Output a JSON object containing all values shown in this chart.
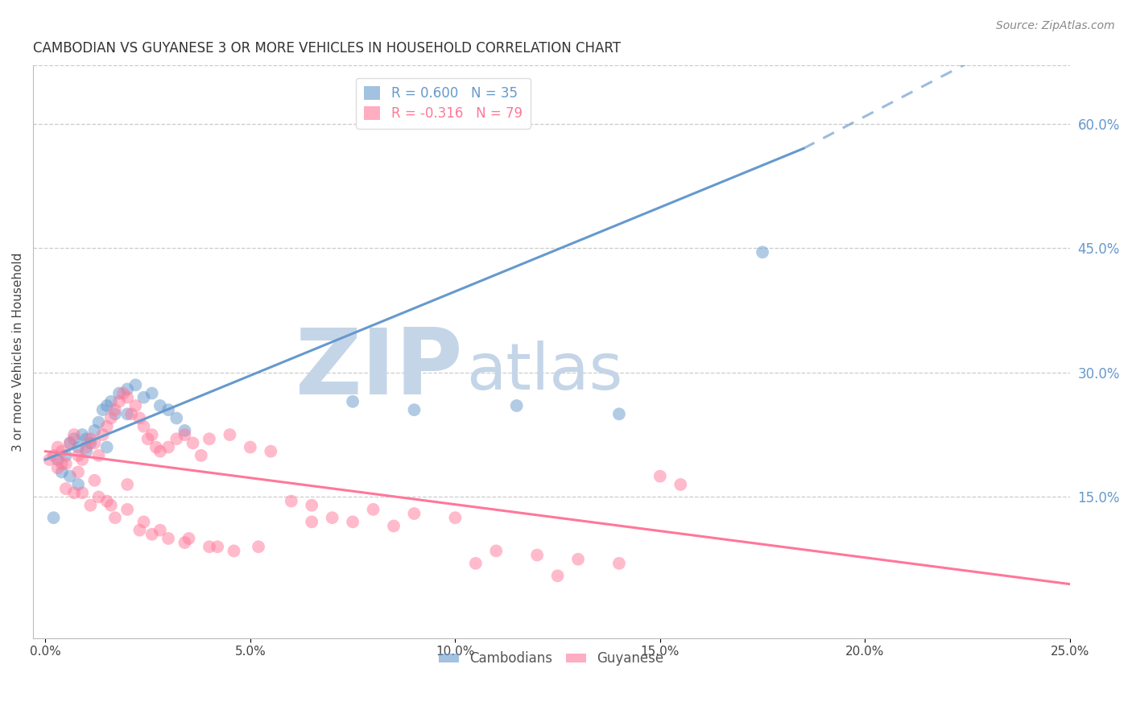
{
  "title": "CAMBODIAN VS GUYANESE 3 OR MORE VEHICLES IN HOUSEHOLD CORRELATION CHART",
  "source_text": "Source: ZipAtlas.com",
  "ylabel": "3 or more Vehicles in Household",
  "xlabel_ticks": [
    "0.0%",
    "5.0%",
    "10.0%",
    "15.0%",
    "20.0%",
    "25.0%"
  ],
  "xlabel_vals": [
    0.0,
    5.0,
    10.0,
    15.0,
    20.0,
    25.0
  ],
  "ylabel_ticks_right": [
    "60.0%",
    "45.0%",
    "30.0%",
    "15.0%"
  ],
  "ylabel_vals_right": [
    60.0,
    45.0,
    30.0,
    15.0
  ],
  "xlim": [
    -0.3,
    25.0
  ],
  "ylim": [
    -2.0,
    67.0
  ],
  "legend_cambodian": "R = 0.600   N = 35",
  "legend_guyanese": "R = -0.316   N = 79",
  "cambodian_color": "#6699cc",
  "guyanese_color": "#ff7799",
  "title_fontsize": 12,
  "source_fontsize": 10,
  "watermark_zip": "ZIP",
  "watermark_atlas": "atlas",
  "watermark_color_zip": "#c5d5e8",
  "watermark_color_atlas": "#c5d5e8",
  "grid_color": "#cccccc",
  "background_color": "#ffffff",
  "blue_trendline_solid": {
    "x": [
      0.0,
      18.5
    ],
    "y": [
      19.5,
      57.0
    ]
  },
  "blue_trendline_dashed": {
    "x": [
      18.5,
      25.5
    ],
    "y": [
      57.0,
      75.0
    ]
  },
  "pink_trendline": {
    "x": [
      0.0,
      25.0
    ],
    "y": [
      20.5,
      4.5
    ]
  },
  "cambodian_scatter_x": [
    0.3,
    0.5,
    0.6,
    0.7,
    0.8,
    0.9,
    1.0,
    1.1,
    1.2,
    1.3,
    1.4,
    1.5,
    1.6,
    1.7,
    1.8,
    2.0,
    2.2,
    2.4,
    2.6,
    2.8,
    3.0,
    3.2,
    3.4,
    0.4,
    0.6,
    0.8,
    1.0,
    1.5,
    2.0,
    7.5,
    9.0,
    11.5,
    14.0,
    17.5,
    0.2
  ],
  "cambodian_scatter_y": [
    19.5,
    20.0,
    21.5,
    22.0,
    21.0,
    22.5,
    20.5,
    21.5,
    23.0,
    24.0,
    25.5,
    26.0,
    26.5,
    25.0,
    27.5,
    28.0,
    28.5,
    27.0,
    27.5,
    26.0,
    25.5,
    24.5,
    23.0,
    18.0,
    17.5,
    16.5,
    22.0,
    21.0,
    25.0,
    26.5,
    25.5,
    26.0,
    25.0,
    44.5,
    12.5
  ],
  "guyanese_scatter_x": [
    0.1,
    0.2,
    0.3,
    0.4,
    0.5,
    0.6,
    0.7,
    0.8,
    0.9,
    1.0,
    1.1,
    1.2,
    1.3,
    1.4,
    1.5,
    1.6,
    1.7,
    1.8,
    1.9,
    2.0,
    2.1,
    2.2,
    2.3,
    2.4,
    2.5,
    2.6,
    2.7,
    2.8,
    3.0,
    3.2,
    3.4,
    3.6,
    3.8,
    4.0,
    4.5,
    5.0,
    5.5,
    6.0,
    6.5,
    7.0,
    7.5,
    8.0,
    9.0,
    10.0,
    11.0,
    12.0,
    13.0,
    14.0,
    15.0,
    0.3,
    0.5,
    0.7,
    0.9,
    1.1,
    1.3,
    1.5,
    1.7,
    2.0,
    2.3,
    2.6,
    3.0,
    3.4,
    4.0,
    4.6,
    5.2,
    6.5,
    8.5,
    10.5,
    12.5,
    0.4,
    0.8,
    1.2,
    1.6,
    2.0,
    2.4,
    2.8,
    3.5,
    4.2,
    15.5
  ],
  "guyanese_scatter_y": [
    19.5,
    20.0,
    21.0,
    20.5,
    19.0,
    21.5,
    22.5,
    20.0,
    19.5,
    21.0,
    22.0,
    21.5,
    20.0,
    22.5,
    23.5,
    24.5,
    25.5,
    26.5,
    27.5,
    27.0,
    25.0,
    26.0,
    24.5,
    23.5,
    22.0,
    22.5,
    21.0,
    20.5,
    21.0,
    22.0,
    22.5,
    21.5,
    20.0,
    22.0,
    22.5,
    21.0,
    20.5,
    14.5,
    14.0,
    12.5,
    12.0,
    13.5,
    13.0,
    12.5,
    8.5,
    8.0,
    7.5,
    7.0,
    17.5,
    18.5,
    16.0,
    15.5,
    15.5,
    14.0,
    15.0,
    14.5,
    12.5,
    16.5,
    11.0,
    10.5,
    10.0,
    9.5,
    9.0,
    8.5,
    9.0,
    12.0,
    11.5,
    7.0,
    5.5,
    19.0,
    18.0,
    17.0,
    14.0,
    13.5,
    12.0,
    11.0,
    10.0,
    9.0,
    16.5
  ]
}
